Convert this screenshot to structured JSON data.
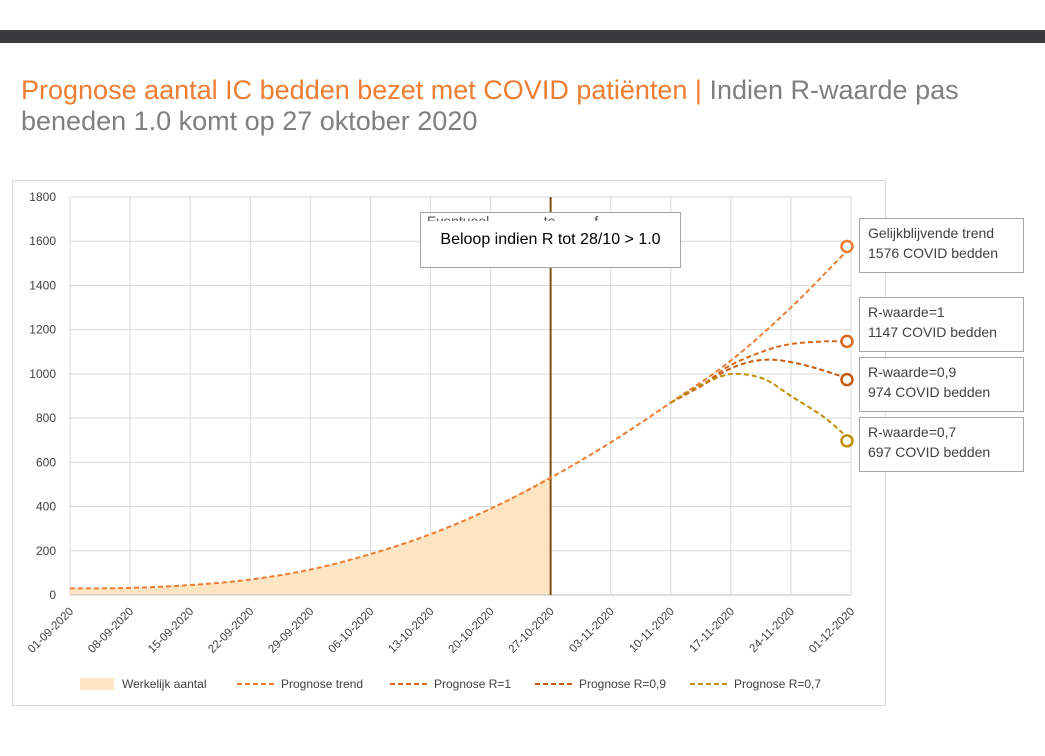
{
  "title": {
    "highlight": "Prognose aantal IC bedden bezet met COVID patiënten",
    "separator": " | ",
    "rest": "Indien R-waarde pas beneden 1.0 komt op 27 oktober 2020"
  },
  "callout": {
    "text": "Beloop indien R tot 28/10 > 1.0",
    "hidden_text": "Eventueel ............ te ........ f"
  },
  "end_labels": [
    {
      "line1": "Gelijkblijvende trend",
      "line2": "1576 COVID bedden"
    },
    {
      "line1": "R-waarde=1",
      "line2": "1147 COVID bedden"
    },
    {
      "line1": "R-waarde=0,9",
      "line2": "974 COVID bedden"
    },
    {
      "line1": "R-waarde=0,7",
      "line2": "697 COVID bedden"
    }
  ],
  "colors": {
    "title_accent": "#ed7d31",
    "title_gray": "#7f7f7f",
    "area": "#fde4c2",
    "trend": "#ed7d31",
    "r1": "#d9691e",
    "r09": "#c55a11",
    "r07": "#bf8f00",
    "vline": "#7f4f0f",
    "grid": "#d9d9d9"
  },
  "chart_data": {
    "type": "area",
    "ylim": [
      0,
      1800
    ],
    "yticks": [
      "0",
      "200",
      "400",
      "600",
      "800",
      "1000",
      "1200",
      "1400",
      "1600",
      "1800"
    ],
    "x_labels": [
      "01-09-2020",
      "08-09-2020",
      "15-09-2020",
      "22-09-2020",
      "29-09-2020",
      "06-10-2020",
      "13-10-2020",
      "20-10-2020",
      "27-10-2020",
      "03-11-2020",
      "10-11-2020",
      "17-11-2020",
      "24-11-2020",
      "01-12-2020"
    ],
    "x_days_total": 91,
    "vertical_marker_day": 56,
    "series": [
      {
        "name": "Werkelijk aantal",
        "kind": "area",
        "points": [
          [
            0,
            30
          ],
          [
            7,
            32
          ],
          [
            14,
            45
          ],
          [
            21,
            70
          ],
          [
            28,
            115
          ],
          [
            35,
            185
          ],
          [
            42,
            275
          ],
          [
            49,
            390
          ],
          [
            56,
            540
          ]
        ]
      },
      {
        "name": "Prognose trend",
        "kind": "dashed",
        "points": [
          [
            0,
            30
          ],
          [
            7,
            32
          ],
          [
            14,
            45
          ],
          [
            21,
            70
          ],
          [
            28,
            115
          ],
          [
            35,
            185
          ],
          [
            42,
            275
          ],
          [
            49,
            390
          ],
          [
            56,
            530
          ],
          [
            63,
            690
          ],
          [
            70,
            870
          ],
          [
            77,
            1060
          ],
          [
            84,
            1300
          ],
          [
            91,
            1576
          ]
        ]
      },
      {
        "name": "Prognose R=1",
        "kind": "dashed",
        "points": [
          [
            70,
            870
          ],
          [
            74,
            960
          ],
          [
            77,
            1040
          ],
          [
            81,
            1105
          ],
          [
            84,
            1135
          ],
          [
            88,
            1147
          ],
          [
            91,
            1147
          ]
        ]
      },
      {
        "name": "Prognose R=0,9",
        "kind": "dashed",
        "points": [
          [
            70,
            870
          ],
          [
            74,
            955
          ],
          [
            77,
            1025
          ],
          [
            80,
            1060
          ],
          [
            83,
            1060
          ],
          [
            87,
            1025
          ],
          [
            91,
            974
          ]
        ]
      },
      {
        "name": "Prognose R=0,7",
        "kind": "dashed",
        "points": [
          [
            70,
            870
          ],
          [
            73,
            940
          ],
          [
            76,
            990
          ],
          [
            78,
            1000
          ],
          [
            81,
            975
          ],
          [
            84,
            900
          ],
          [
            88,
            800
          ],
          [
            91,
            697
          ]
        ]
      }
    ],
    "end_markers": [
      1576,
      1147,
      974,
      697
    ],
    "legend": [
      "Werkelijk aantal",
      "Prognose trend",
      "Prognose R=1",
      "Prognose R=0,9",
      "Prognose R=0,7"
    ]
  }
}
